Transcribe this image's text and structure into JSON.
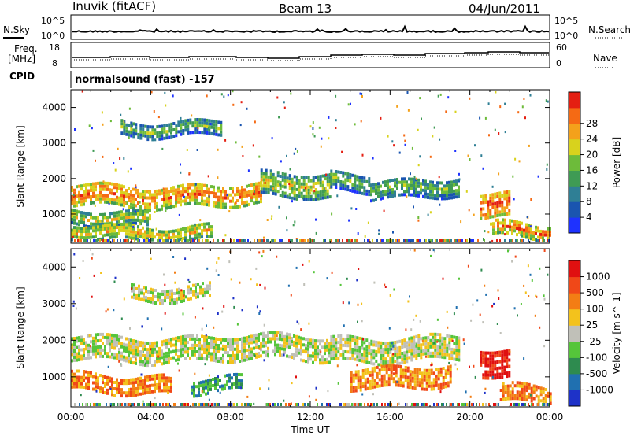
{
  "header": {
    "site": "Inuvik (fitACF)",
    "beam": "Beam 13",
    "date": "04/Jun/2011"
  },
  "params": {
    "nsky_label": "N.Sky",
    "nsearch_label": "N.Search",
    "freq_label": "Freq.",
    "freq_unit": "[MHz]",
    "nave_label": "Nave",
    "cpid_label": "CPID",
    "cpid_text": "normalsound (fast) -157",
    "noise_ticks_left": [
      "10^5",
      "10^0"
    ],
    "noise_ticks_right": [
      "10^5",
      "10^0"
    ],
    "freq_ticks": [
      "18",
      "8"
    ],
    "nave_ticks": [
      "60",
      "0"
    ]
  },
  "chart_data": [
    {
      "type": "heatmap",
      "name": "power",
      "ylabel": "Slant Range [km]",
      "xlabel": "",
      "ylim": [
        180,
        4500
      ],
      "xlim": [
        0,
        24
      ],
      "yticks": [
        1000,
        2000,
        3000,
        4000
      ],
      "colorbar": {
        "label": "Power [dB]",
        "ticks": [
          "4",
          "8",
          "12",
          "16",
          "20",
          "24",
          "28"
        ],
        "colors": [
          "#1e32ff",
          "#1a55b0",
          "#2f7f95",
          "#3f9b54",
          "#6dbb3a",
          "#d8d21d",
          "#f4a11b",
          "#f56a14",
          "#e41f12"
        ]
      },
      "bands": [
        {
          "x0": 0.0,
          "x1": 9.5,
          "y_center": 1500,
          "half_width": 300,
          "level": 7
        },
        {
          "x0": 9.5,
          "x1": 13.0,
          "y_center": 1750,
          "half_width": 330,
          "level": 5
        },
        {
          "x0": 13.0,
          "x1": 15.0,
          "y_center": 1900,
          "half_width": 250,
          "level": 4
        },
        {
          "x0": 15.0,
          "x1": 19.5,
          "y_center": 1700,
          "half_width": 250,
          "level": 4
        },
        {
          "x0": 0.0,
          "x1": 4.0,
          "y_center": 850,
          "half_width": 200,
          "level": 5
        },
        {
          "x0": 0.0,
          "x1": 7.0,
          "y_center": 450,
          "half_width": 200,
          "level": 6
        },
        {
          "x0": 2.5,
          "x1": 7.5,
          "y_center": 3400,
          "half_width": 200,
          "level": 4
        },
        {
          "x0": 20.5,
          "x1": 22.0,
          "y_center": 1200,
          "half_width": 350,
          "level": 8
        },
        {
          "x0": 21.0,
          "x1": 24.0,
          "y_center": 500,
          "half_width": 200,
          "level": 7
        }
      ]
    },
    {
      "type": "heatmap",
      "name": "velocity",
      "ylabel": "Slant Range [km]",
      "xlabel": "Time UT",
      "ylim": [
        180,
        4500
      ],
      "xlim": [
        0,
        24
      ],
      "yticks": [
        1000,
        2000,
        3000,
        4000
      ],
      "xticks": [
        "00:00",
        "04:00",
        "08:00",
        "12:00",
        "16:00",
        "20:00",
        "00:00"
      ],
      "colorbar": {
        "label": "Velocity [m s^-1]",
        "ticks": [
          "1000",
          "500",
          "100",
          "25",
          "-25",
          "-100",
          "-500",
          "-1000"
        ],
        "colors": [
          "#1e32c8",
          "#2070b0",
          "#2e8b4f",
          "#55c53a",
          "#c0c0b8",
          "#f3c21c",
          "#f37d14",
          "#f04818",
          "#e01010"
        ]
      },
      "bands": [
        {
          "x0": 0.0,
          "x1": 13.0,
          "y_center": 1750,
          "half_width": 330,
          "level": 4
        },
        {
          "x0": 13.0,
          "x1": 19.5,
          "y_center": 1750,
          "half_width": 330,
          "level": 4
        },
        {
          "x0": 0.0,
          "x1": 5.0,
          "y_center": 800,
          "half_width": 250,
          "level": 6
        },
        {
          "x0": 6.0,
          "x1": 8.5,
          "y_center": 750,
          "half_width": 200,
          "level": 2
        },
        {
          "x0": 14.0,
          "x1": 19.0,
          "y_center": 1000,
          "half_width": 300,
          "level": 6
        },
        {
          "x0": 3.0,
          "x1": 7.0,
          "y_center": 3300,
          "half_width": 200,
          "level": 4
        },
        {
          "x0": 20.5,
          "x1": 22.0,
          "y_center": 1300,
          "half_width": 350,
          "level": 8
        },
        {
          "x0": 21.5,
          "x1": 24.0,
          "y_center": 500,
          "half_width": 250,
          "level": 6
        }
      ]
    }
  ]
}
